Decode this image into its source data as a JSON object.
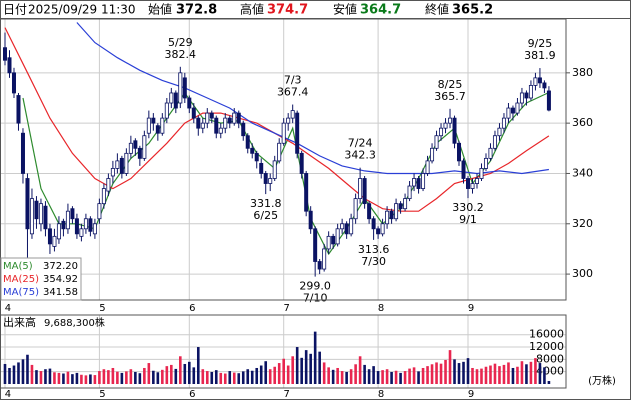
{
  "chart_data": {
    "type": "candlestick",
    "header": {
      "date_label": "日付",
      "date": "2025/09/29 11:30",
      "open_label": "始値",
      "open": 372.8,
      "high_label": "高値",
      "high": 374.7,
      "low_label": "安値",
      "low": 364.7,
      "close_label": "終値",
      "close": 365.2
    },
    "xlim": [
      -1,
      124.8
    ],
    "xticks": [
      {
        "value": 0,
        "label": "4"
      },
      {
        "value": 21,
        "label": "5"
      },
      {
        "value": 41,
        "label": "6"
      },
      {
        "value": 62,
        "label": "7"
      },
      {
        "value": 83,
        "label": "8"
      },
      {
        "value": 103,
        "label": "9"
      }
    ],
    "ylim": [
      289.7,
      401.4
    ],
    "yticks": [
      300,
      320,
      340,
      360,
      380
    ],
    "grid": true,
    "up_color": "#ffffff",
    "down_color": "#0b1363",
    "ohlc": [
      [
        390,
        396,
        383,
        385
      ],
      [
        386,
        389,
        378,
        380
      ],
      [
        380,
        382,
        370,
        372
      ],
      [
        371,
        372,
        357,
        360
      ],
      [
        356,
        358,
        336,
        340
      ],
      [
        338,
        340,
        306,
        318
      ],
      [
        316,
        334,
        314,
        330
      ],
      [
        329,
        331,
        318,
        322
      ],
      [
        320,
        330,
        317,
        328
      ],
      [
        327,
        329,
        315,
        318
      ],
      [
        318,
        320,
        308,
        312
      ],
      [
        311,
        318,
        309,
        315
      ],
      [
        314,
        323,
        312,
        320
      ],
      [
        321,
        322,
        315,
        318
      ],
      [
        318,
        328,
        316,
        325
      ],
      [
        326,
        327,
        320,
        322
      ],
      [
        322,
        324,
        314,
        316
      ],
      [
        315,
        320,
        313,
        318
      ],
      [
        318,
        324,
        316,
        322
      ],
      [
        322,
        323,
        315,
        317
      ],
      [
        316,
        322,
        314,
        320
      ],
      [
        322,
        330,
        320,
        328
      ],
      [
        328,
        336,
        326,
        334
      ],
      [
        333,
        340,
        331,
        338
      ],
      [
        339,
        345,
        336,
        342
      ],
      [
        342,
        348,
        340,
        345
      ],
      [
        346,
        347,
        338,
        340
      ],
      [
        340,
        350,
        339,
        348
      ],
      [
        348,
        355,
        346,
        352
      ],
      [
        353,
        354,
        347,
        350
      ],
      [
        350,
        351,
        343,
        346
      ],
      [
        346,
        357,
        345,
        355
      ],
      [
        356,
        365,
        354,
        362
      ],
      [
        362,
        364,
        357,
        360
      ],
      [
        359,
        360,
        353,
        356
      ],
      [
        356,
        364,
        355,
        362
      ],
      [
        362,
        370,
        360,
        368
      ],
      [
        368,
        374,
        366,
        372
      ],
      [
        372,
        373,
        364,
        366
      ],
      [
        368,
        382.4,
        366,
        380
      ],
      [
        378,
        380,
        368,
        370
      ],
      [
        370,
        371,
        364,
        366
      ],
      [
        366,
        368,
        360,
        362
      ],
      [
        362,
        363,
        355,
        358
      ],
      [
        358,
        362,
        356,
        360
      ],
      [
        360,
        366,
        358,
        364
      ],
      [
        364,
        365,
        360,
        362
      ],
      [
        362,
        363,
        354,
        356
      ],
      [
        356,
        360,
        354,
        358
      ],
      [
        358,
        364,
        356,
        362
      ],
      [
        362,
        363,
        358,
        360
      ],
      [
        360,
        366,
        359,
        364
      ],
      [
        364,
        365,
        358,
        360
      ],
      [
        360,
        361,
        353,
        355
      ],
      [
        355,
        356,
        348,
        350
      ],
      [
        350,
        352,
        346,
        348
      ],
      [
        348,
        349,
        342,
        345
      ],
      [
        344,
        346,
        338,
        340
      ],
      [
        340,
        341,
        331.8,
        336
      ],
      [
        336,
        340,
        333,
        338
      ],
      [
        338,
        347,
        337,
        345
      ],
      [
        345,
        354,
        344,
        352
      ],
      [
        352,
        362,
        351,
        360
      ],
      [
        360,
        364,
        357,
        362
      ],
      [
        362,
        367.4,
        360,
        365
      ],
      [
        364,
        365,
        346,
        348
      ],
      [
        348,
        349,
        338,
        340
      ],
      [
        340,
        341,
        323,
        325
      ],
      [
        325,
        327,
        316,
        318
      ],
      [
        318,
        319,
        299,
        305
      ],
      [
        305,
        306,
        300,
        302
      ],
      [
        302,
        312,
        301,
        310
      ],
      [
        310,
        317,
        308,
        315
      ],
      [
        315,
        316,
        310,
        312
      ],
      [
        312,
        320,
        311,
        318
      ],
      [
        318,
        322,
        316,
        320
      ],
      [
        320,
        321,
        314,
        316
      ],
      [
        316,
        324,
        315,
        322
      ],
      [
        322,
        332,
        320,
        330
      ],
      [
        330,
        342.3,
        328,
        338
      ],
      [
        338,
        339,
        326,
        328
      ],
      [
        328,
        329,
        320,
        322
      ],
      [
        322,
        323,
        313.6,
        318
      ],
      [
        318,
        319,
        314,
        316
      ],
      [
        316,
        322,
        315,
        320
      ],
      [
        320,
        327,
        318,
        325
      ],
      [
        325,
        326,
        320,
        322
      ],
      [
        322,
        330,
        321,
        328
      ],
      [
        328,
        329,
        324,
        326
      ],
      [
        326,
        332,
        325,
        330
      ],
      [
        330,
        337,
        329,
        335
      ],
      [
        335,
        340,
        333,
        338
      ],
      [
        338,
        339,
        332,
        334
      ],
      [
        334,
        342,
        333,
        340
      ],
      [
        340,
        347,
        339,
        345
      ],
      [
        345,
        352,
        344,
        350
      ],
      [
        350,
        357,
        349,
        355
      ],
      [
        355,
        360,
        353,
        358
      ],
      [
        358,
        362,
        356,
        360
      ],
      [
        360,
        365.7,
        358,
        362
      ],
      [
        362,
        363,
        350,
        352
      ],
      [
        352,
        353,
        343,
        345
      ],
      [
        345,
        346,
        336,
        338
      ],
      [
        338,
        339,
        330.2,
        334
      ],
      [
        334,
        338,
        332,
        336
      ],
      [
        336,
        340,
        334,
        338
      ],
      [
        338,
        344,
        337,
        342
      ],
      [
        342,
        348,
        341,
        346
      ],
      [
        346,
        352,
        345,
        350
      ],
      [
        350,
        357,
        349,
        355
      ],
      [
        355,
        360,
        353,
        358
      ],
      [
        358,
        364,
        356,
        362
      ],
      [
        362,
        368,
        360,
        366
      ],
      [
        366,
        367,
        361,
        364
      ],
      [
        364,
        370,
        363,
        368
      ],
      [
        368,
        374,
        366,
        372
      ],
      [
        372,
        373,
        367,
        370
      ],
      [
        370,
        377,
        369,
        375
      ],
      [
        375,
        380,
        373,
        378
      ],
      [
        378,
        381.9,
        374,
        376
      ],
      [
        376,
        377,
        372,
        374
      ],
      [
        372.8,
        374.7,
        364.7,
        365.2
      ]
    ],
    "moving_averages": [
      {
        "name": "MA(5)",
        "color": "#2e8b2e",
        "last": "372.20",
        "x": [
          4,
          8,
          12,
          16,
          20,
          24,
          28,
          32,
          36,
          40,
          44,
          48,
          52,
          56,
          60,
          64,
          68,
          72,
          76,
          80,
          84,
          88,
          92,
          96,
          100,
          104,
          108,
          112,
          116,
          121
        ],
        "values": [
          370,
          334,
          320,
          320,
          318,
          336,
          346,
          352,
          362,
          372,
          362,
          360,
          361,
          348,
          342,
          358,
          322,
          308,
          318,
          330,
          320,
          326,
          338,
          352,
          358,
          336,
          345,
          360,
          368,
          372.2
        ]
      },
      {
        "name": "MA(25)",
        "color": "#e8262a",
        "last": "354.92",
        "x": [
          0,
          5,
          10,
          15,
          20,
          24,
          28,
          32,
          36,
          40,
          44,
          48,
          52,
          56,
          60,
          64,
          68,
          72,
          76,
          80,
          84,
          88,
          92,
          96,
          100,
          104,
          108,
          112,
          116,
          121
        ],
        "values": [
          398,
          380,
          362,
          348,
          338,
          334,
          338,
          345,
          352,
          360,
          364,
          364,
          362,
          360,
          356,
          352,
          347,
          342,
          336,
          330,
          326,
          325,
          325,
          330,
          336,
          338,
          340,
          344,
          349,
          354.92
        ]
      },
      {
        "name": "MA(75)",
        "color": "#2a3fd6",
        "last": "341.58",
        "x": [
          16,
          20,
          25,
          30,
          35,
          40,
          45,
          50,
          55,
          60,
          65,
          70,
          75,
          80,
          85,
          90,
          95,
          100,
          105,
          110,
          115,
          121
        ],
        "values": [
          400,
          392,
          386,
          381,
          377,
          374,
          370,
          366,
          360,
          356,
          352,
          347,
          343,
          341,
          340,
          340,
          340,
          341,
          340,
          341,
          340,
          341.58
        ]
      }
    ],
    "annotations": [
      {
        "x": 39,
        "date": "5/29",
        "value": 382.4,
        "place": "above"
      },
      {
        "x": 64,
        "date": "7/3",
        "value": 367.4,
        "place": "above"
      },
      {
        "x": 58,
        "date": "6/25",
        "value": 331.8,
        "place": "below"
      },
      {
        "x": 79,
        "date": "7/24",
        "value": 342.3,
        "place": "above"
      },
      {
        "x": 69,
        "date": "7/10",
        "value": 299,
        "value_label": "299.0",
        "place": "below"
      },
      {
        "x": 82,
        "date": "7/30",
        "value": 313.6,
        "place": "below"
      },
      {
        "x": 99,
        "date": "8/25",
        "value": 365.7,
        "place": "above"
      },
      {
        "x": 119,
        "date": "9/25",
        "value": 381.9,
        "place": "above"
      },
      {
        "x": 103,
        "date": "9/1",
        "value": 330.2,
        "place": "below"
      }
    ],
    "volume": {
      "title": "出来高",
      "total": "9,688,300株",
      "unit": "(万株)",
      "up_color": "#e8264f",
      "down_color": "#0b1363",
      "ylim": [
        0,
        22400
      ],
      "yticks": [
        4000,
        8000,
        12000,
        16000
      ],
      "values": [
        6500,
        5200,
        6000,
        7000,
        8000,
        9500,
        6200,
        4500,
        4200,
        4800,
        5000,
        3800,
        3600,
        3400,
        4000,
        3200,
        3600,
        3000,
        2800,
        3100,
        2900,
        4200,
        4800,
        4500,
        5200,
        4000,
        3600,
        4100,
        4800,
        3900,
        3500,
        5200,
        6800,
        4300,
        3800,
        4600,
        5800,
        6200,
        4900,
        9000,
        6500,
        7200,
        5400,
        12000,
        4800,
        4200,
        3900,
        4500,
        3600,
        3400,
        4200,
        3700,
        3500,
        4100,
        4800,
        4300,
        5200,
        6000,
        7400,
        4800,
        5600,
        6800,
        8200,
        6000,
        9000,
        12000,
        8500,
        11000,
        9800,
        17000,
        10500,
        7000,
        5400,
        4600,
        5200,
        4200,
        3900,
        4800,
        6400,
        9000,
        6200,
        4800,
        5800,
        4200,
        4500,
        4800,
        3900,
        4300,
        3600,
        4200,
        5000,
        5400,
        4100,
        5200,
        5800,
        6400,
        7000,
        6600,
        7800,
        11000,
        8000,
        6800,
        7200,
        8400,
        5200,
        4800,
        5000,
        5600,
        6000,
        6600,
        5800,
        6200,
        7000,
        5200,
        5600,
        7400,
        6400,
        7200,
        8400,
        6800,
        5400,
        968.83
      ]
    }
  }
}
